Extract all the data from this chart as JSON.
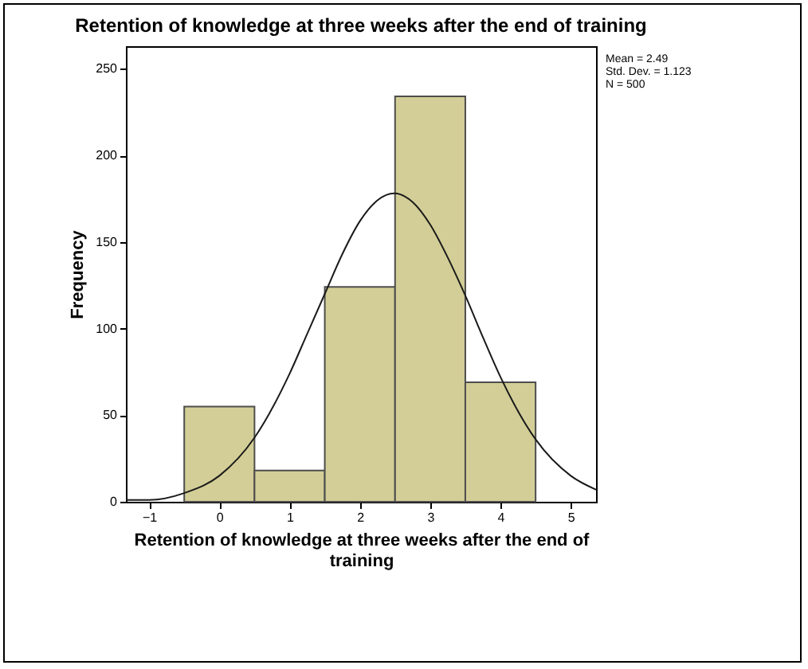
{
  "chart_data": {
    "type": "histogram",
    "title": "Retention of knowledge at three weeks after the end of training",
    "xlabel": "Retention of knowledge at three weeks after the end of training",
    "ylabel": "Frequency",
    "bins": [
      -0.5,
      0.5,
      1.5,
      2.5,
      3.5,
      4.5
    ],
    "values": [
      55,
      18,
      124,
      234,
      69
    ],
    "color": "#d3ce97",
    "series": [
      {
        "type": "line",
        "color": "#1a1a1a",
        "x": [
          -1.33,
          -1,
          -0.5,
          0,
          0.5,
          1,
          1.25,
          1.5,
          1.75,
          2,
          2.25,
          2.49,
          2.75,
          3,
          3.25,
          3.5,
          3.75,
          4,
          4.5,
          5,
          5.36
        ],
        "values": [
          1,
          1,
          5,
          15,
          37,
          74,
          97,
          120,
          143,
          162,
          174,
          178,
          173,
          160,
          141,
          119,
          95,
          72,
          36,
          15,
          7
        ]
      }
    ],
    "xlim": [
      -1.33,
      5.36
    ],
    "xticks": [
      -1,
      0,
      1,
      2,
      3,
      4,
      5
    ],
    "ylim": [
      0,
      263
    ],
    "yticks": [
      0,
      50,
      100,
      150,
      200,
      250
    ],
    "grid": false,
    "annotations": [
      "Mean = 2.49",
      "Std. Dev. = 1.123",
      "N = 500"
    ]
  }
}
